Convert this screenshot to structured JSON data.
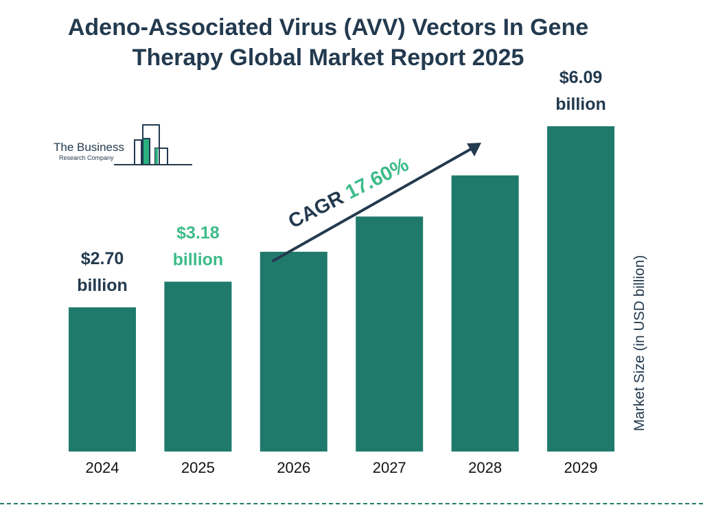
{
  "chart_data": {
    "type": "bar",
    "title": "Adeno-Associated Virus (AVV) Vectors In Gene Therapy Global Market Report 2025",
    "ylabel": "Market Size (in USD billion)",
    "xlabel": "",
    "categories": [
      "2024",
      "2025",
      "2026",
      "2027",
      "2028",
      "2029"
    ],
    "values": [
      2.7,
      3.18,
      3.74,
      4.4,
      5.17,
      6.09
    ],
    "data_labels": [
      {
        "index": 0,
        "line1": "$2.70",
        "line2": "billion",
        "color": "#233a4f"
      },
      {
        "index": 1,
        "line1": "$3.18",
        "line2": "billion",
        "color": "#3dbb8a"
      },
      {
        "index": 5,
        "line1": "$6.09",
        "line2": "billion",
        "color": "#233a4f"
      }
    ],
    "annotation": {
      "prefix": "CAGR",
      "value": "17.60%"
    },
    "ylim": [
      0,
      6.09
    ],
    "grid": false,
    "legend": "none"
  },
  "logo": {
    "line1": "The Business",
    "line2": "Research Company"
  },
  "colors": {
    "bar": "#1f7a6c",
    "text": "#233a4f",
    "accent": "#3dbb8a",
    "logo_bar": "#2bb07f"
  }
}
